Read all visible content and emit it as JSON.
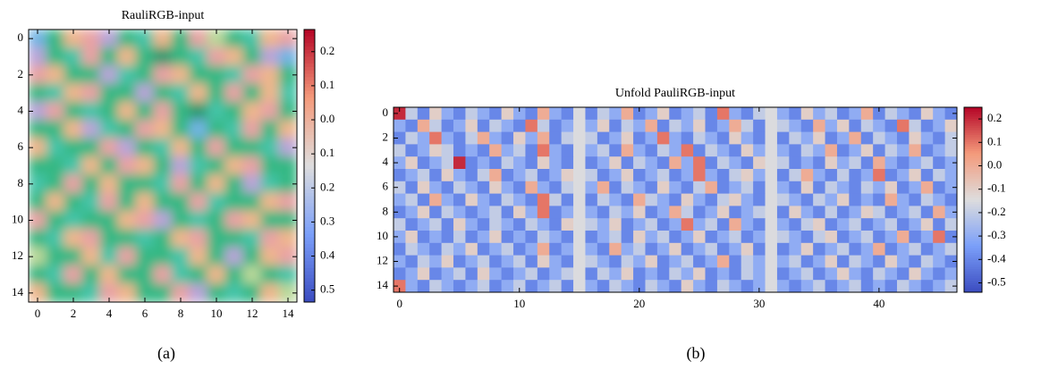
{
  "chart_data": [
    {
      "type": "image",
      "title": "RauliRGB-input",
      "caption": "(a)",
      "xlim": [
        -0.5,
        14.5
      ],
      "ylim": [
        14.5,
        -0.5
      ],
      "xticks": [
        0,
        2,
        4,
        6,
        8,
        10,
        12,
        14
      ],
      "yticks": [
        0,
        2,
        4,
        6,
        8,
        10,
        12,
        14
      ],
      "colormap": "coolwarm",
      "clim": [
        -0.535,
        0.265
      ],
      "cticks": [
        0.2,
        0.1,
        {
          "value": 0,
          "label": "0.0"
        },
        {
          "value": -0.1,
          "label": "0.1"
        },
        {
          "value": -0.2,
          "label": "0.2"
        },
        {
          "value": -0.3,
          "label": "0.3"
        },
        {
          "value": -0.4,
          "label": "0.4"
        },
        {
          "value": -0.5,
          "label": "0.5"
        }
      ],
      "pixels": [
        [
          "#72b4e4",
          "#34b884",
          "#eeb68c",
          "#e8a2a4",
          "#b8a4d8",
          "#34b884",
          "#45c4a8",
          "#eeb68c",
          "#34b884",
          "#e8a2a4",
          "#b9d89a",
          "#34b884",
          "#45c4a8",
          "#eeb68c",
          "#e8a2a4"
        ],
        [
          "#b8a4d8",
          "#34b884",
          "#45c4a8",
          "#e8a2a4",
          "#34b884",
          "#eeb68c",
          "#34b884",
          "#2a9a70",
          "#34b884",
          "#45c4a8",
          "#e8a2a4",
          "#eeb68c",
          "#34b884",
          "#b8a4d8",
          "#72b4e4"
        ],
        [
          "#e8a2a4",
          "#eeb68c",
          "#34b884",
          "#34b884",
          "#b8a4d8",
          "#45c4a8",
          "#34b884",
          "#e8a2a4",
          "#eeb68c",
          "#34b884",
          "#34b884",
          "#45c4a8",
          "#e8a2a4",
          "#eeb68c",
          "#34b884"
        ],
        [
          "#34b884",
          "#45c4a8",
          "#eeb68c",
          "#e8a2a4",
          "#34b884",
          "#34b884",
          "#b8a4d8",
          "#34b884",
          "#45c4a8",
          "#eeb68c",
          "#34b884",
          "#e8a2a4",
          "#34b884",
          "#eeb68c",
          "#45c4a8"
        ],
        [
          "#b8a4d8",
          "#e8a2a4",
          "#34b884",
          "#45c4a8",
          "#34b884",
          "#eeb68c",
          "#34b884",
          "#e8a2a4",
          "#34b884",
          "#2a9a70",
          "#45c4a8",
          "#34b884",
          "#eeb68c",
          "#e8a2a4",
          "#34b884"
        ],
        [
          "#34b884",
          "#34b884",
          "#eeb68c",
          "#b8a4d8",
          "#45c4a8",
          "#34b884",
          "#e8a2a4",
          "#eeb68c",
          "#34b884",
          "#72b4e4",
          "#34b884",
          "#45c4a8",
          "#e8a2a4",
          "#34b884",
          "#eeb68c"
        ],
        [
          "#eeb68c",
          "#45c4a8",
          "#34b884",
          "#34b884",
          "#e8a2a4",
          "#b8a4d8",
          "#34b884",
          "#45c4a8",
          "#eeb68c",
          "#34b884",
          "#e8a2a4",
          "#34b884",
          "#34b884",
          "#45c4a8",
          "#b8a4d8"
        ],
        [
          "#34b884",
          "#34b884",
          "#45c4a8",
          "#eeb68c",
          "#34b884",
          "#e8a2a4",
          "#eeb68c",
          "#34b884",
          "#b8a4d8",
          "#45c4a8",
          "#34b884",
          "#eeb68c",
          "#e8a2a4",
          "#34b884",
          "#34b884"
        ],
        [
          "#45c4a8",
          "#34b884",
          "#e8a2a4",
          "#34b884",
          "#eeb68c",
          "#34b884",
          "#34b884",
          "#45c4a8",
          "#e8a2a4",
          "#34b884",
          "#eeb68c",
          "#34b884",
          "#b8a4d8",
          "#45c4a8",
          "#34b884"
        ],
        [
          "#34b884",
          "#eeb68c",
          "#34b884",
          "#45c4a8",
          "#e8a2a4",
          "#34b884",
          "#eeb68c",
          "#34b884",
          "#34b884",
          "#e8a2a4",
          "#45c4a8",
          "#34b884",
          "#34b884",
          "#eeb68c",
          "#e8a2a4"
        ],
        [
          "#e8a2a4",
          "#34b884",
          "#45c4a8",
          "#34b884",
          "#34b884",
          "#eeb68c",
          "#e8a2a4",
          "#b8a4d8",
          "#34b884",
          "#45c4a8",
          "#34b884",
          "#e8a2a4",
          "#eeb68c",
          "#34b884",
          "#34b884"
        ],
        [
          "#34b884",
          "#45c4a8",
          "#eeb68c",
          "#e8a2a4",
          "#34b884",
          "#34b884",
          "#45c4a8",
          "#34b884",
          "#eeb68c",
          "#e8a2a4",
          "#34b884",
          "#34b884",
          "#45c4a8",
          "#e8a2a4",
          "#eeb68c"
        ],
        [
          "#b9d89a",
          "#34b884",
          "#34b884",
          "#eeb68c",
          "#45c4a8",
          "#e8a2a4",
          "#34b884",
          "#34b884",
          "#45c4a8",
          "#eeb68c",
          "#34b884",
          "#b8a4d8",
          "#34b884",
          "#eeb68c",
          "#e8a2a4"
        ],
        [
          "#34b884",
          "#45c4a8",
          "#e8a2a4",
          "#34b884",
          "#eeb68c",
          "#34b884",
          "#34b884",
          "#e8a2a4",
          "#45c4a8",
          "#34b884",
          "#eeb68c",
          "#34b884",
          "#b9d89a",
          "#34b884",
          "#45c4a8"
        ],
        [
          "#eeb68c",
          "#34b884",
          "#34b884",
          "#45c4a8",
          "#e8a2a4",
          "#eeb68c",
          "#34b884",
          "#34b884",
          "#e8a2a4",
          "#b8a4d8",
          "#34b884",
          "#45c4a8",
          "#34b884",
          "#eeb68c",
          "#b9d89a"
        ]
      ]
    },
    {
      "type": "heatmap",
      "title": "Unfold PauliRGB-input",
      "caption": "(b)",
      "xlim": [
        -0.5,
        46.5
      ],
      "ylim": [
        14.5,
        -0.5
      ],
      "xticks": [
        0,
        10,
        20,
        30,
        40
      ],
      "yticks": [
        0,
        2,
        4,
        6,
        8,
        10,
        12,
        14
      ],
      "colormap": "coolwarm",
      "clim": [
        -0.54,
        0.25
      ],
      "cticks": [
        0.2,
        0.1,
        {
          "value": 0,
          "label": "0.0"
        },
        -0.1,
        -0.2,
        -0.3,
        -0.4,
        -0.5
      ],
      "values": [
        [
          0.2,
          -0.2,
          -0.4,
          -0.1,
          -0.3,
          -0.4,
          -0.2,
          -0.3,
          -0.4,
          -0.1,
          -0.3,
          -0.4,
          0,
          -0.3,
          -0.4,
          -0.15,
          -0.4,
          -0.2,
          -0.3,
          0,
          -0.4,
          -0.3,
          -0.1,
          -0.4,
          -0.3,
          -0.2,
          -0.4,
          0.1,
          -0.3,
          -0.4,
          -0.2,
          -0.15,
          -0.3,
          -0.4,
          -0.1,
          -0.3,
          -0.2,
          -0.4,
          -0.3,
          0,
          -0.4,
          -0.2,
          -0.3,
          -0.4,
          -0.1,
          -0.3,
          -0.4
        ],
        [
          -0.3,
          -0.4,
          0,
          -0.2,
          -0.4,
          -0.3,
          -0.1,
          -0.4,
          -0.2,
          -0.3,
          -0.4,
          0.1,
          -0.2,
          -0.4,
          -0.3,
          -0.15,
          -0.3,
          -0.1,
          -0.4,
          -0.2,
          -0.3,
          0,
          -0.4,
          -0.2,
          -0.3,
          -0.1,
          -0.4,
          -0.3,
          0,
          -0.2,
          -0.4,
          -0.15,
          -0.2,
          -0.3,
          -0.4,
          0,
          -0.3,
          -0.1,
          -0.4,
          -0.2,
          -0.3,
          -0.4,
          0.1,
          -0.2,
          -0.4,
          -0.3,
          -0.1
        ],
        [
          -0.4,
          -0.2,
          -0.3,
          0.1,
          -0.3,
          -0.4,
          -0.2,
          0,
          -0.3,
          -0.4,
          -0.1,
          -0.3,
          0,
          -0.4,
          -0.2,
          -0.15,
          -0.2,
          -0.4,
          -0.3,
          -0.1,
          -0.4,
          -0.3,
          0.1,
          -0.3,
          -0.4,
          -0.2,
          -0.3,
          -0.4,
          -0.1,
          -0.3,
          -0.4,
          -0.15,
          -0.4,
          -0.2,
          -0.3,
          -0.1,
          -0.4,
          -0.3,
          0,
          -0.4,
          -0.2,
          -0.3,
          -0.4,
          -0.1,
          -0.3,
          -0.4,
          -0.2
        ],
        [
          -0.2,
          -0.4,
          -0.3,
          -0.1,
          -0.2,
          -0.4,
          -0.3,
          -0.4,
          0,
          -0.3,
          -0.2,
          -0.4,
          0.1,
          -0.3,
          -0.4,
          -0.15,
          -0.3,
          -0.2,
          -0.4,
          0,
          -0.3,
          -0.4,
          -0.2,
          -0.3,
          0.1,
          -0.4,
          -0.2,
          -0.3,
          -0.4,
          -0.1,
          -0.3,
          -0.15,
          -0.3,
          -0.4,
          -0.2,
          -0.3,
          0,
          -0.4,
          -0.3,
          -0.1,
          -0.4,
          -0.2,
          -0.3,
          0,
          -0.4,
          -0.3,
          -0.2
        ],
        [
          -0.3,
          -0.1,
          -0.4,
          -0.3,
          -0.2,
          0.2,
          -0.4,
          -0.3,
          -0.4,
          -0.2,
          -0.3,
          -0.4,
          -0.1,
          -0.3,
          -0.4,
          -0.15,
          -0.4,
          -0.3,
          -0.1,
          -0.4,
          -0.2,
          -0.3,
          -0.4,
          0,
          -0.3,
          0.1,
          -0.4,
          -0.2,
          -0.3,
          -0.4,
          -0.1,
          -0.15,
          -0.2,
          -0.4,
          -0.3,
          -0.4,
          -0.1,
          -0.3,
          -0.2,
          -0.4,
          0,
          -0.3,
          -0.4,
          -0.3,
          -0.2,
          -0.4,
          -0.3
        ],
        [
          -0.4,
          -0.3,
          -0.2,
          -0.4,
          -0.1,
          -0.3,
          -0.4,
          -0.2,
          0,
          -0.4,
          -0.3,
          -0.2,
          -0.4,
          -0.3,
          -0.1,
          -0.15,
          -0.2,
          -0.4,
          -0.3,
          -0.1,
          -0.4,
          -0.3,
          -0.2,
          -0.4,
          -0.3,
          0.1,
          -0.3,
          -0.4,
          -0.2,
          -0.1,
          -0.3,
          -0.15,
          -0.4,
          -0.2,
          0,
          -0.3,
          -0.4,
          -0.2,
          -0.4,
          -0.3,
          0.1,
          -0.4,
          -0.3,
          -0.1,
          -0.4,
          -0.2,
          -0.3
        ],
        [
          -0.2,
          -0.4,
          -0.1,
          -0.3,
          -0.4,
          -0.2,
          -0.3,
          -0.4,
          -0.1,
          -0.3,
          -0.4,
          0,
          -0.3,
          -0.4,
          -0.2,
          -0.15,
          -0.3,
          0,
          -0.4,
          -0.2,
          -0.3,
          -0.4,
          -0.1,
          -0.3,
          -0.4,
          -0.2,
          0,
          -0.4,
          -0.3,
          -0.2,
          -0.4,
          -0.15,
          -0.3,
          -0.4,
          -0.1,
          -0.4,
          -0.2,
          -0.3,
          -0.4,
          -0.2,
          -0.3,
          -0.1,
          -0.4,
          -0.3,
          0,
          -0.4,
          -0.3
        ],
        [
          -0.3,
          -0.2,
          -0.4,
          0,
          -0.3,
          -0.4,
          -0.1,
          -0.3,
          -0.4,
          -0.2,
          -0.3,
          -0.4,
          0.1,
          -0.2,
          -0.4,
          -0.15,
          -0.4,
          -0.2,
          -0.3,
          -0.4,
          0,
          -0.2,
          -0.3,
          -0.4,
          -0.1,
          -0.3,
          -0.4,
          -0.2,
          -0.1,
          -0.3,
          -0.4,
          -0.15,
          -0.2,
          -0.3,
          -0.4,
          -0.2,
          -0.3,
          -0.1,
          -0.4,
          -0.3,
          -0.4,
          0,
          -0.3,
          -0.4,
          -0.2,
          -0.3,
          -0.4
        ],
        [
          -0.4,
          -0.3,
          -0.1,
          -0.4,
          -0.2,
          -0.3,
          -0.4,
          -0.3,
          -0.2,
          -0.4,
          -0.1,
          -0.3,
          0.1,
          -0.4,
          -0.3,
          -0.15,
          -0.3,
          -0.4,
          -0.2,
          -0.3,
          -0.1,
          -0.4,
          -0.3,
          0,
          -0.2,
          -0.4,
          -0.3,
          -0.1,
          -0.4,
          -0.3,
          -0.2,
          -0.15,
          -0.4,
          -0.1,
          -0.3,
          -0.4,
          -0.2,
          -0.4,
          -0.3,
          -0.1,
          -0.2,
          -0.4,
          -0.3,
          -0.2,
          -0.4,
          0,
          -0.3
        ],
        [
          -0.2,
          -0.4,
          -0.3,
          -0.2,
          -0.4,
          -0.1,
          -0.3,
          -0.4,
          -0.2,
          -0.3,
          -0.4,
          -0.2,
          -0.3,
          -0.4,
          -0.1,
          -0.15,
          -0.2,
          -0.3,
          -0.1,
          -0.4,
          -0.3,
          -0.2,
          -0.4,
          -0.3,
          0.1,
          -0.3,
          -0.2,
          -0.4,
          0,
          -0.3,
          -0.4,
          -0.15,
          -0.3,
          -0.4,
          -0.2,
          -0.1,
          -0.4,
          -0.3,
          -0.2,
          -0.4,
          -0.3,
          -0.2,
          -0.4,
          -0.3,
          -0.1,
          -0.4,
          -0.2
        ],
        [
          -0.3,
          -0.1,
          -0.4,
          -0.3,
          -0.4,
          -0.2,
          -0.4,
          -0.3,
          -0.1,
          -0.4,
          -0.3,
          -0.4,
          -0.2,
          -0.3,
          -0.4,
          -0.15,
          -0.4,
          -0.3,
          -0.2,
          -0.4,
          -0.1,
          -0.3,
          -0.2,
          -0.4,
          -0.3,
          -0.1,
          -0.4,
          -0.3,
          -0.2,
          -0.4,
          -0.3,
          -0.15,
          -0.2,
          -0.3,
          -0.4,
          -0.2,
          -0.1,
          -0.4,
          -0.3,
          -0.2,
          -0.4,
          -0.3,
          0,
          -0.4,
          -0.3,
          0.1,
          -0.4
        ],
        [
          -0.4,
          -0.2,
          -0.3,
          -0.4,
          -0.2,
          -0.3,
          -0.1,
          -0.4,
          -0.3,
          -0.2,
          -0.4,
          -0.3,
          0,
          -0.4,
          -0.3,
          -0.15,
          -0.3,
          -0.4,
          0,
          -0.3,
          -0.2,
          -0.4,
          -0.3,
          -0.1,
          -0.4,
          -0.3,
          -0.2,
          -0.4,
          -0.3,
          -0.1,
          -0.4,
          -0.15,
          -0.4,
          -0.3,
          -0.1,
          -0.4,
          -0.3,
          -0.2,
          -0.4,
          -0.3,
          0,
          -0.4,
          -0.3,
          -0.2,
          -0.4,
          -0.3,
          -0.2
        ],
        [
          -0.3,
          -0.4,
          -0.2,
          -0.3,
          -0.1,
          -0.4,
          -0.3,
          -0.2,
          -0.4,
          -0.3,
          -0.2,
          -0.4,
          -0.1,
          -0.3,
          -0.4,
          -0.15,
          -0.2,
          -0.3,
          -0.4,
          -0.2,
          -0.3,
          -0.1,
          -0.4,
          -0.3,
          -0.2,
          -0.4,
          -0.3,
          0,
          -0.4,
          -0.2,
          -0.3,
          -0.15,
          -0.3,
          -0.2,
          -0.4,
          -0.3,
          -0.1,
          -0.4,
          -0.2,
          -0.3,
          -0.4,
          -0.1,
          -0.3,
          -0.4,
          -0.2,
          -0.3,
          -0.4
        ],
        [
          -0.4,
          -0.3,
          -0.1,
          -0.4,
          -0.3,
          -0.2,
          -0.4,
          -0.1,
          -0.3,
          -0.4,
          -0.3,
          -0.2,
          -0.4,
          -0.3,
          -0.2,
          -0.15,
          -0.4,
          -0.2,
          -0.3,
          -0.1,
          -0.4,
          -0.3,
          -0.4,
          -0.2,
          -0.3,
          -0.1,
          -0.4,
          -0.3,
          -0.4,
          -0.2,
          -0.3,
          -0.15,
          -0.4,
          -0.3,
          -0.2,
          -0.4,
          -0.3,
          -0.1,
          -0.3,
          -0.4,
          -0.2,
          -0.3,
          -0.4,
          -0.1,
          -0.3,
          -0.4,
          -0.3
        ],
        [
          0.1,
          -0.3,
          -0.4,
          -0.2,
          -0.3,
          -0.4,
          -0.3,
          -0.2,
          -0.4,
          -0.3,
          -0.2,
          -0.4,
          -0.3,
          -0.2,
          -0.4,
          -0.15,
          -0.3,
          -0.4,
          -0.2,
          -0.3,
          -0.4,
          -0.2,
          -0.3,
          -0.4,
          -0.1,
          -0.3,
          -0.4,
          -0.2,
          -0.3,
          -0.4,
          -0.3,
          -0.15,
          -0.3,
          -0.4,
          -0.3,
          -0.2,
          -0.4,
          -0.3,
          -0.2,
          -0.4,
          -0.3,
          -0.4,
          -0.2,
          -0.3,
          -0.4,
          -0.3,
          -0.2
        ]
      ]
    }
  ]
}
